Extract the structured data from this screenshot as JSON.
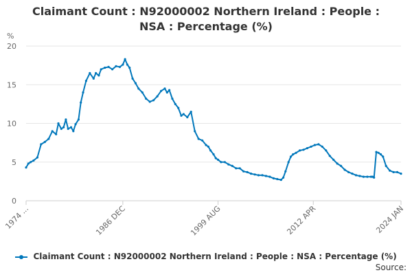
{
  "chart_data": {
    "type": "line",
    "title_line1": "Claimant Count : N92000002 Northern Ireland : People :",
    "title_line2": "NSA : Percentage (%)",
    "ylabel": "%",
    "ylim": [
      0,
      20
    ],
    "yticks": [
      "0",
      "5",
      "10",
      "15",
      "20"
    ],
    "xlim": [
      1974.0,
      2024.0
    ],
    "xticks": [
      {
        "label": "1974 ...",
        "value": 1974.0
      },
      {
        "label": "1986 DEC",
        "value": 1986.9
      },
      {
        "label": "1999 AUG",
        "value": 1999.6
      },
      {
        "label": "2012 APR",
        "value": 2012.3
      },
      {
        "label": "2024 JAN",
        "value": 2024.0
      }
    ],
    "grid": true,
    "legend_position": "bottom",
    "series": [
      {
        "name": "Claimant Count : N92000002 Northern Ireland : People : NSA : Percentage (%)",
        "color": "#0077bb",
        "x": [
          1974.0,
          1974.3,
          1974.6,
          1975.0,
          1975.5,
          1976.0,
          1976.5,
          1977.0,
          1977.5,
          1978.0,
          1978.3,
          1978.7,
          1979.0,
          1979.3,
          1979.6,
          1980.0,
          1980.3,
          1980.6,
          1981.0,
          1981.3,
          1981.6,
          1982.0,
          1982.5,
          1983.0,
          1983.3,
          1983.7,
          1984.0,
          1984.5,
          1985.0,
          1985.5,
          1986.0,
          1986.5,
          1986.9,
          1987.2,
          1987.5,
          1987.8,
          1988.2,
          1988.6,
          1989.0,
          1989.5,
          1990.0,
          1990.5,
          1991.0,
          1991.5,
          1992.0,
          1992.5,
          1992.8,
          1993.1,
          1993.5,
          1993.9,
          1994.3,
          1994.7,
          1995.0,
          1995.5,
          1996.0,
          1996.5,
          1997.0,
          1997.5,
          1998.0,
          1998.3,
          1998.6,
          1999.0,
          1999.3,
          1999.6,
          2000.0,
          2000.5,
          2001.0,
          2001.5,
          2002.0,
          2002.5,
          2003.0,
          2003.5,
          2004.0,
          2004.5,
          2005.0,
          2005.5,
          2006.0,
          2006.5,
          2007.0,
          2007.5,
          2008.0,
          2008.3,
          2008.6,
          2009.0,
          2009.3,
          2009.6,
          2010.0,
          2010.5,
          2011.0,
          2011.5,
          2012.0,
          2012.5,
          2013.0,
          2013.5,
          2014.0,
          2014.5,
          2015.0,
          2015.5,
          2016.0,
          2016.5,
          2017.0,
          2017.5,
          2018.0,
          2018.5,
          2019.0,
          2019.5,
          2020.0,
          2020.2,
          2020.4,
          2020.7,
          2021.0,
          2021.3,
          2021.6,
          2022.0,
          2022.5,
          2023.0,
          2023.5,
          2024.0
        ],
        "y": [
          4.3,
          4.8,
          5.0,
          5.2,
          5.6,
          7.3,
          7.6,
          8.0,
          9.0,
          8.6,
          10.0,
          9.3,
          9.5,
          10.5,
          9.3,
          9.5,
          9.0,
          9.9,
          10.5,
          12.7,
          14.0,
          15.5,
          16.5,
          15.8,
          16.5,
          16.2,
          17.0,
          17.2,
          17.3,
          17.0,
          17.4,
          17.3,
          17.6,
          18.3,
          17.6,
          17.2,
          15.8,
          15.2,
          14.5,
          14.0,
          13.2,
          12.8,
          13.0,
          13.5,
          14.2,
          14.5,
          14.0,
          14.3,
          13.2,
          12.5,
          12.0,
          11.0,
          11.2,
          10.8,
          11.5,
          9.0,
          8.0,
          7.8,
          7.2,
          7.0,
          6.5,
          6.0,
          5.5,
          5.3,
          5.0,
          5.0,
          4.7,
          4.5,
          4.2,
          4.2,
          3.8,
          3.7,
          3.5,
          3.4,
          3.3,
          3.3,
          3.2,
          3.1,
          2.9,
          2.8,
          2.7,
          3.0,
          3.8,
          5.0,
          5.7,
          6.0,
          6.2,
          6.5,
          6.6,
          6.8,
          7.0,
          7.2,
          7.3,
          7.0,
          6.5,
          5.8,
          5.3,
          4.8,
          4.5,
          4.0,
          3.7,
          3.5,
          3.3,
          3.2,
          3.1,
          3.1,
          3.1,
          3.1,
          3.0,
          6.3,
          6.2,
          6.0,
          5.7,
          4.5,
          3.9,
          3.7,
          3.7,
          3.5
        ]
      }
    ]
  },
  "legend": {
    "label": "Claimant Count : N92000002 Northern Ireland : People : NSA : Percentage (%)"
  },
  "footer": {
    "source": "Source:"
  }
}
